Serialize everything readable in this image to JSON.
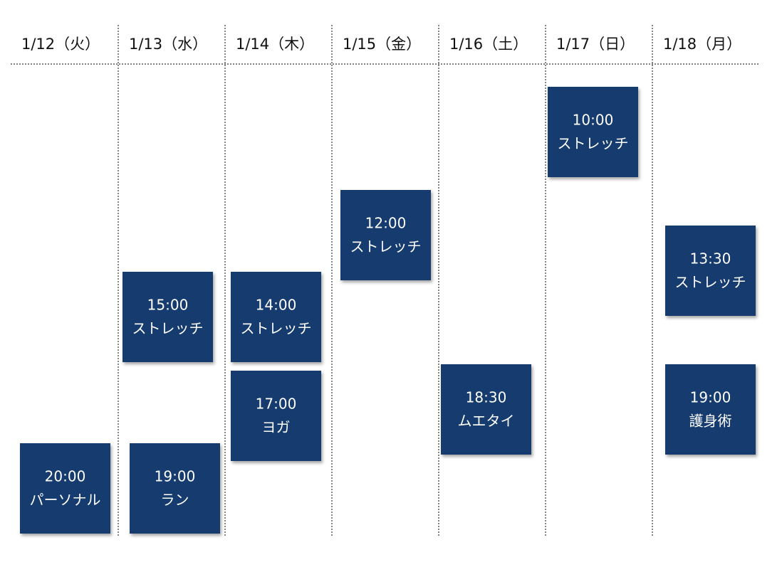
{
  "days": [
    {
      "label": "1/12（火）",
      "events": [
        {
          "time": "20:00",
          "label": "パーソナル"
        }
      ]
    },
    {
      "label": "1/13（水）",
      "events": [
        {
          "time": "15:00",
          "label": "ストレッチ"
        },
        {
          "time": "19:00",
          "label": "ラン"
        }
      ]
    },
    {
      "label": "1/14（木）",
      "events": [
        {
          "time": "14:00",
          "label": "ストレッチ"
        },
        {
          "time": "17:00",
          "label": "ヨガ"
        }
      ]
    },
    {
      "label": "1/15（金）",
      "events": [
        {
          "time": "12:00",
          "label": "ストレッチ"
        }
      ]
    },
    {
      "label": "1/16（土）",
      "events": [
        {
          "time": "18:30",
          "label": "ムエタイ"
        }
      ]
    },
    {
      "label": "1/17（日）",
      "events": [
        {
          "time": "10:00",
          "label": "ストレッチ"
        }
      ]
    },
    {
      "label": "1/18（月）",
      "events": [
        {
          "time": "13:30",
          "label": "ストレッチ"
        },
        {
          "time": "19:00",
          "label": "護身術"
        }
      ]
    }
  ]
}
